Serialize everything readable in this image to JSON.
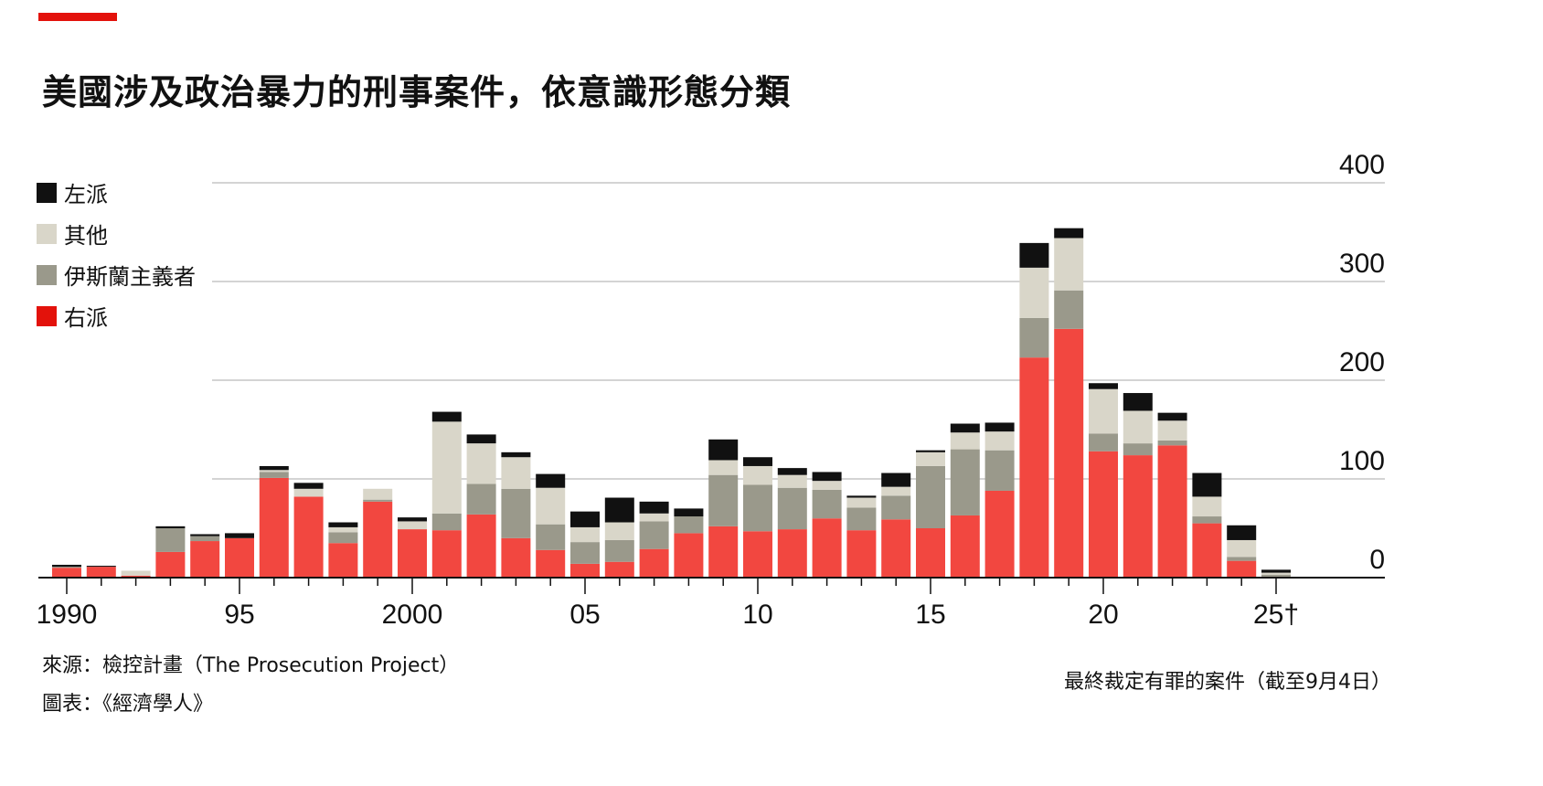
{
  "header": {
    "accent_color": "#e3120b",
    "title": "美國涉及政治暴力的刑事案件，依意識形態分類"
  },
  "legend": [
    {
      "label": "左派",
      "color": "#111111"
    },
    {
      "label": "其他",
      "color": "#d9d6c9"
    },
    {
      "label": "伊斯蘭主義者",
      "color": "#9a998b"
    },
    {
      "label": "右派",
      "color": "#f24740"
    }
  ],
  "footer": {
    "source": "來源：檢控計畫（The Prosecution Project）",
    "credit": "圖表：《經濟學人》",
    "note": "最終裁定有罪的案件（截至9月4日）"
  },
  "chart_data": {
    "type": "bar",
    "stacked": true,
    "x_tick_labels": [
      "1990",
      "95",
      "2000",
      "05",
      "10",
      "15",
      "20",
      "25†"
    ],
    "x": [
      1990,
      1991,
      1992,
      1993,
      1994,
      1995,
      1996,
      1997,
      1998,
      1999,
      2000,
      2001,
      2002,
      2003,
      2004,
      2005,
      2006,
      2007,
      2008,
      2009,
      2010,
      2011,
      2012,
      2013,
      2014,
      2015,
      2016,
      2017,
      2018,
      2019,
      2020,
      2021,
      2022,
      2023,
      2024,
      2025
    ],
    "ylim": [
      0,
      400
    ],
    "y_ticks": [
      0,
      100,
      200,
      300,
      400
    ],
    "grid": true,
    "y_axis_side": "right",
    "legend_position": "top-left",
    "series": [
      {
        "name": "右派",
        "color": "#f24740",
        "values": [
          10,
          11,
          2,
          26,
          37,
          40,
          101,
          82,
          35,
          77,
          49,
          48,
          64,
          40,
          28,
          14,
          16,
          29,
          45,
          52,
          47,
          49,
          60,
          48,
          59,
          50,
          63,
          88,
          223,
          252,
          128,
          124,
          134,
          55,
          17,
          1
        ]
      },
      {
        "name": "伊斯蘭主義者",
        "color": "#9a998b",
        "values": [
          1,
          0,
          0,
          24,
          5,
          0,
          6,
          0,
          11,
          2,
          0,
          17,
          31,
          50,
          26,
          22,
          22,
          28,
          17,
          52,
          47,
          42,
          29,
          23,
          24,
          63,
          67,
          41,
          40,
          39,
          18,
          12,
          5,
          7,
          4,
          2
        ]
      },
      {
        "name": "其他",
        "color": "#d9d6c9",
        "values": [
          0,
          0,
          5,
          0,
          0,
          0,
          2,
          8,
          5,
          11,
          8,
          93,
          41,
          32,
          37,
          15,
          18,
          8,
          0,
          15,
          19,
          13,
          9,
          10,
          9,
          14,
          17,
          19,
          51,
          53,
          45,
          33,
          20,
          20,
          17,
          2
        ]
      },
      {
        "name": "左派",
        "color": "#111111",
        "values": [
          2,
          1,
          0,
          2,
          2,
          5,
          4,
          6,
          5,
          0,
          4,
          10,
          9,
          5,
          14,
          16,
          25,
          12,
          8,
          21,
          9,
          7,
          9,
          2,
          14,
          2,
          9,
          9,
          25,
          10,
          6,
          18,
          8,
          24,
          15,
          3
        ]
      }
    ]
  }
}
